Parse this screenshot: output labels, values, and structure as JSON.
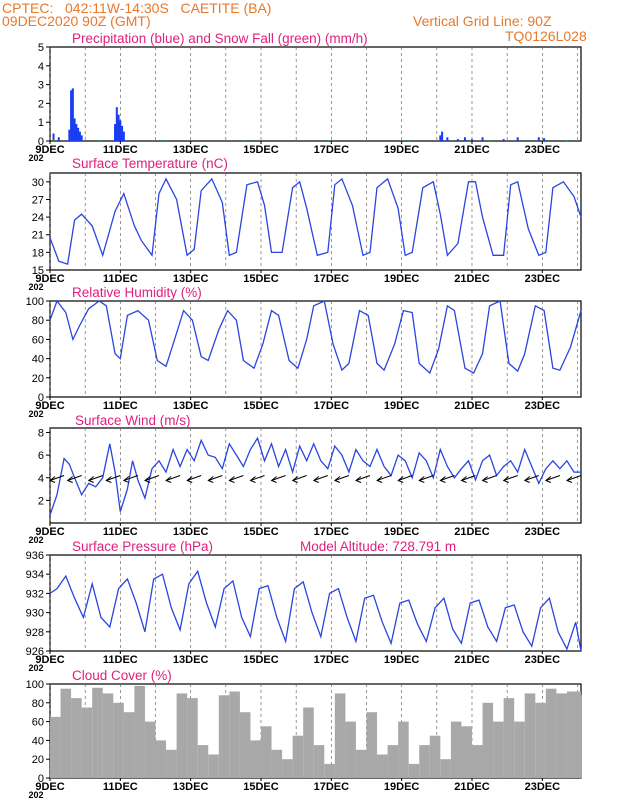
{
  "header": {
    "station": "CPTEC:   042:11W-14:30S   CAETITE (BA)",
    "run": "09DEC2020 90Z (GMT)",
    "grid_note": "Vertical Grid Line: 90Z",
    "code": "TQ0126L028",
    "text_color": "#e8782b",
    "title_color": "#e0207e"
  },
  "x_axis": {
    "start_day": 9,
    "end_day": 24.1,
    "tick_labels": [
      "9DEC",
      "11DEC",
      "13DEC",
      "15DEC",
      "17DEC",
      "19DEC",
      "21DEC",
      "23DEC"
    ],
    "tick_days": [
      9,
      11,
      13,
      15,
      17,
      19,
      21,
      23
    ],
    "year_fragment": "202"
  },
  "chart_data": [
    {
      "type": "bar",
      "title": "Precipitation (blue) and Snow Fall (green) (mm/h)",
      "ylim": [
        0,
        5
      ],
      "yticks": [
        0,
        1,
        2,
        3,
        4,
        5
      ],
      "series": [
        {
          "color": "#1a3cf0",
          "x": [
            9.1,
            9.25,
            9.55,
            9.6,
            9.65,
            9.7,
            9.75,
            9.8,
            9.85,
            9.9,
            10.85,
            10.9,
            10.95,
            11.0,
            11.05,
            11.1,
            20.1,
            20.15,
            20.3,
            20.6,
            20.8,
            21.0,
            21.3,
            21.9,
            22.3,
            22.9,
            23.05
          ],
          "values": [
            0.4,
            0.2,
            0.6,
            2.7,
            2.8,
            1.2,
            0.9,
            0.7,
            0.5,
            0.3,
            0.9,
            1.8,
            1.4,
            1.1,
            0.8,
            0.5,
            0.3,
            0.5,
            0.2,
            0.1,
            0.2,
            0.1,
            0.2,
            0.1,
            0.2,
            0.2,
            0.15
          ]
        },
        {
          "color": "#22a622",
          "x": [
            9.1,
            10.4,
            12.2,
            14.5,
            16.9,
            19.2,
            21.5,
            23.7
          ],
          "values": [
            0.05,
            0.05,
            0.05,
            0.05,
            0.05,
            0.05,
            0.05,
            0.05
          ]
        }
      ]
    },
    {
      "type": "line",
      "title": "Surface Temperature (nC)",
      "ylim": [
        15,
        31.5
      ],
      "yticks": [
        15,
        18,
        21,
        24,
        27,
        30
      ],
      "series": [
        {
          "color": "#2a45e0",
          "x": [
            9.0,
            9.25,
            9.5,
            9.7,
            9.9,
            10.2,
            10.5,
            10.85,
            11.1,
            11.4,
            11.6,
            11.9,
            12.1,
            12.3,
            12.6,
            12.9,
            13.1,
            13.3,
            13.6,
            13.9,
            14.1,
            14.3,
            14.6,
            14.9,
            15.1,
            15.3,
            15.6,
            15.9,
            16.1,
            16.3,
            16.6,
            16.9,
            17.1,
            17.3,
            17.6,
            17.9,
            18.1,
            18.3,
            18.6,
            18.9,
            19.1,
            19.3,
            19.6,
            19.9,
            20.1,
            20.3,
            20.6,
            20.9,
            21.1,
            21.3,
            21.6,
            21.9,
            22.1,
            22.3,
            22.6,
            22.9,
            23.1,
            23.3,
            23.6,
            23.9,
            24.1
          ],
          "values": [
            20.5,
            16.5,
            16.0,
            23.5,
            24.5,
            22.5,
            17.5,
            25.0,
            28.0,
            22.5,
            20.0,
            17.5,
            28.0,
            30.5,
            27.0,
            17.5,
            18.5,
            28.5,
            30.5,
            26.5,
            17.5,
            18.0,
            29.5,
            30.0,
            26.0,
            18.0,
            18.0,
            29.0,
            30.0,
            25.5,
            17.5,
            18.0,
            29.5,
            30.5,
            26.0,
            17.5,
            18.0,
            29.0,
            30.5,
            25.5,
            17.5,
            18.0,
            29.0,
            30.0,
            24.5,
            17.5,
            19.5,
            30.0,
            30.0,
            24.0,
            17.5,
            17.5,
            29.5,
            30.0,
            22.0,
            17.5,
            18.0,
            29.0,
            30.0,
            27.5,
            24.0
          ]
        }
      ]
    },
    {
      "type": "line",
      "title": "Relative Humidity (%)",
      "ylim": [
        0,
        100
      ],
      "yticks": [
        0,
        20,
        40,
        60,
        80,
        100
      ],
      "series": [
        {
          "color": "#2a45e0",
          "x": [
            9.0,
            9.2,
            9.45,
            9.65,
            9.85,
            10.1,
            10.4,
            10.6,
            10.85,
            11.0,
            11.2,
            11.5,
            11.8,
            12.05,
            12.3,
            12.5,
            12.8,
            13.05,
            13.3,
            13.5,
            13.8,
            14.05,
            14.3,
            14.5,
            14.8,
            15.05,
            15.3,
            15.5,
            15.8,
            16.05,
            16.3,
            16.5,
            16.8,
            17.05,
            17.3,
            17.5,
            17.8,
            18.05,
            18.3,
            18.5,
            18.8,
            19.05,
            19.3,
            19.5,
            19.8,
            20.05,
            20.3,
            20.5,
            20.8,
            21.05,
            21.3,
            21.5,
            21.8,
            22.05,
            22.3,
            22.5,
            22.8,
            23.05,
            23.3,
            23.5,
            23.8,
            24.1
          ],
          "values": [
            80,
            100,
            88,
            60,
            75,
            92,
            100,
            95,
            45,
            40,
            85,
            90,
            80,
            38,
            32,
            55,
            90,
            80,
            42,
            38,
            70,
            90,
            80,
            38,
            30,
            55,
            90,
            85,
            38,
            30,
            60,
            95,
            100,
            55,
            28,
            35,
            90,
            85,
            35,
            28,
            55,
            90,
            88,
            35,
            25,
            50,
            95,
            90,
            30,
            25,
            45,
            95,
            100,
            35,
            27,
            45,
            95,
            90,
            30,
            28,
            52,
            90
          ]
        }
      ]
    },
    {
      "type": "line",
      "title": "Surface Wind (m/s)",
      "ylim": [
        0,
        8.4
      ],
      "yticks": [
        2,
        4,
        6,
        8
      ],
      "series": [
        {
          "color": "#2a45e0",
          "x": [
            9.0,
            9.2,
            9.4,
            9.55,
            9.7,
            9.9,
            10.1,
            10.3,
            10.5,
            10.7,
            10.85,
            11.0,
            11.2,
            11.35,
            11.5,
            11.7,
            11.9,
            12.1,
            12.3,
            12.5,
            12.7,
            12.9,
            13.1,
            13.3,
            13.5,
            13.7,
            13.9,
            14.1,
            14.3,
            14.5,
            14.7,
            14.9,
            15.1,
            15.3,
            15.5,
            15.7,
            15.9,
            16.1,
            16.3,
            16.5,
            16.7,
            16.9,
            17.1,
            17.3,
            17.5,
            17.7,
            17.9,
            18.1,
            18.3,
            18.5,
            18.7,
            18.9,
            19.1,
            19.3,
            19.5,
            19.7,
            19.9,
            20.1,
            20.3,
            20.5,
            20.7,
            20.9,
            21.1,
            21.3,
            21.5,
            21.7,
            21.9,
            22.1,
            22.3,
            22.5,
            22.7,
            22.9,
            23.1,
            23.3,
            23.5,
            23.7,
            23.9,
            24.1
          ],
          "values": [
            0.7,
            2.5,
            5.7,
            5.2,
            4.0,
            2.5,
            3.5,
            3.2,
            4.0,
            7.0,
            4.5,
            1.0,
            3.0,
            5.5,
            3.8,
            2.2,
            4.8,
            5.5,
            4.5,
            6.5,
            5.0,
            6.5,
            5.5,
            7.3,
            6.0,
            5.8,
            4.8,
            7.0,
            6.0,
            5.0,
            6.5,
            7.5,
            5.5,
            7.0,
            5.0,
            6.5,
            4.5,
            6.8,
            5.5,
            7.0,
            5.5,
            4.8,
            6.8,
            6.0,
            4.5,
            6.5,
            5.5,
            5.0,
            6.5,
            5.0,
            4.2,
            6.0,
            5.5,
            4.0,
            6.2,
            5.5,
            4.0,
            6.5,
            5.0,
            4.0,
            4.8,
            5.5,
            3.8,
            5.5,
            6.0,
            4.2,
            5.0,
            5.5,
            4.5,
            6.5,
            5.0,
            3.5,
            4.8,
            5.5,
            4.8,
            5.5,
            4.5,
            4.5
          ]
        }
      ]
    },
    {
      "type": "line",
      "title": "Surface Pressure (hPa)",
      "subtitle": "Model Altitude: 728.791  m",
      "ylim": [
        926,
        936
      ],
      "yticks": [
        926,
        928,
        930,
        932,
        934,
        936
      ],
      "series": [
        {
          "color": "#2a45e0",
          "x": [
            9.0,
            9.2,
            9.45,
            9.7,
            9.95,
            10.2,
            10.45,
            10.7,
            10.95,
            11.2,
            11.45,
            11.7,
            11.95,
            12.2,
            12.45,
            12.7,
            12.95,
            13.2,
            13.45,
            13.7,
            13.95,
            14.2,
            14.45,
            14.7,
            14.95,
            15.2,
            15.45,
            15.7,
            15.95,
            16.2,
            16.45,
            16.7,
            16.95,
            17.2,
            17.45,
            17.7,
            17.95,
            18.2,
            18.45,
            18.7,
            18.95,
            19.2,
            19.45,
            19.7,
            19.95,
            20.2,
            20.45,
            20.7,
            20.95,
            21.2,
            21.45,
            21.7,
            21.95,
            22.2,
            22.45,
            22.7,
            22.95,
            23.2,
            23.45,
            23.7,
            23.95,
            24.1
          ],
          "values": [
            932,
            932.5,
            933.8,
            931.5,
            929.5,
            933,
            929.5,
            928.5,
            932.5,
            933.5,
            931,
            928,
            933.5,
            934,
            930.5,
            928.2,
            933,
            934.3,
            931,
            928.5,
            932.5,
            933.3,
            929.5,
            927.5,
            932.5,
            932.8,
            929.5,
            927,
            932.5,
            933.2,
            930,
            927.5,
            932,
            932.5,
            929.5,
            927,
            931.5,
            931.8,
            929,
            926.8,
            931,
            931.3,
            928.8,
            927,
            930.5,
            931.5,
            928.3,
            926.8,
            931,
            931.3,
            928.5,
            927,
            930.5,
            930.8,
            928,
            926.5,
            930.5,
            931.5,
            928,
            926.2,
            929,
            926
          ]
        }
      ]
    },
    {
      "type": "area",
      "title": "Cloud Cover (%)",
      "ylim": [
        0,
        100
      ],
      "yticks": [
        0,
        20,
        40,
        60,
        80,
        100
      ],
      "series": [
        {
          "color": "#a8a8a8",
          "x": [
            9.0,
            9.3,
            9.6,
            9.9,
            10.2,
            10.5,
            10.8,
            11.1,
            11.4,
            11.7,
            12.0,
            12.3,
            12.6,
            12.9,
            13.2,
            13.5,
            13.8,
            14.1,
            14.4,
            14.7,
            15.0,
            15.3,
            15.6,
            15.9,
            16.2,
            16.5,
            16.8,
            17.1,
            17.4,
            17.7,
            18.0,
            18.3,
            18.6,
            18.9,
            19.2,
            19.5,
            19.8,
            20.1,
            20.4,
            20.7,
            21.0,
            21.3,
            21.6,
            21.9,
            22.2,
            22.5,
            22.8,
            23.1,
            23.4,
            23.7,
            24.1
          ],
          "values": [
            65,
            95,
            85,
            75,
            96,
            90,
            80,
            70,
            98,
            60,
            40,
            30,
            90,
            85,
            35,
            25,
            88,
            92,
            70,
            40,
            55,
            30,
            20,
            45,
            75,
            35,
            15,
            90,
            60,
            30,
            70,
            25,
            35,
            60,
            15,
            35,
            45,
            20,
            60,
            55,
            35,
            80,
            60,
            85,
            60,
            90,
            80,
            95,
            90,
            92,
            88
          ]
        }
      ]
    }
  ]
}
